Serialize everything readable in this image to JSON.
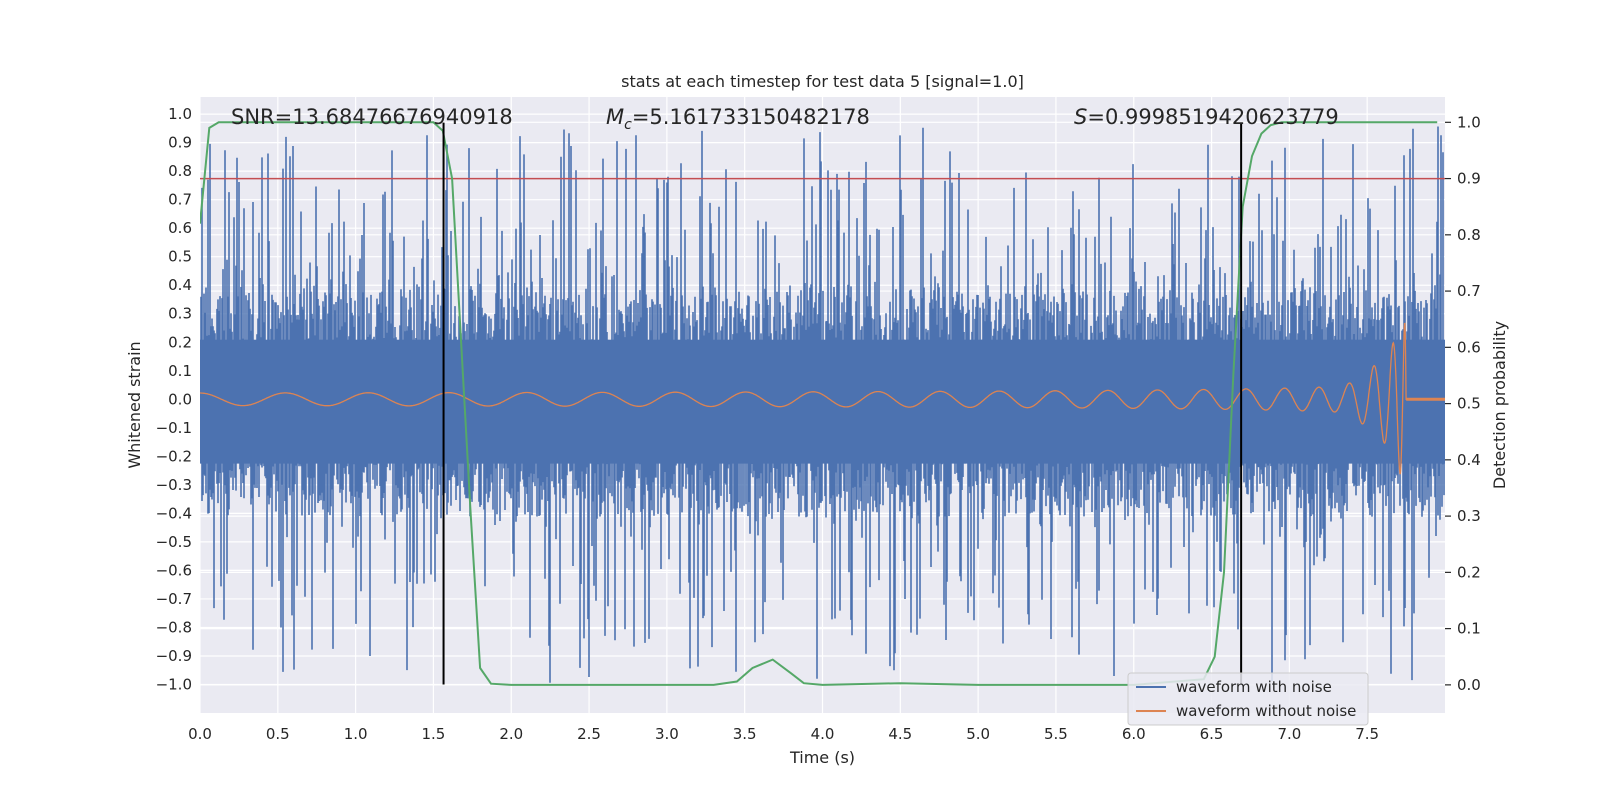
{
  "chart_data": {
    "type": "line",
    "title": "stats at each timestep for test data 5 [signal=1.0]",
    "xlabel": "Time (s)",
    "ylabel_left": "Whitened strain",
    "ylabel_right": "Detection probability",
    "xlim": [
      0.0,
      8.0
    ],
    "ylim_left": [
      -1.1,
      1.06
    ],
    "ylim_right": [
      -0.05,
      1.045
    ],
    "x_ticks": [
      0.0,
      0.5,
      1.0,
      1.5,
      2.0,
      2.5,
      3.0,
      3.5,
      4.0,
      4.5,
      5.0,
      5.5,
      6.0,
      6.5,
      7.0,
      7.5
    ],
    "x_tick_labels": [
      "0.0",
      "0.5",
      "1.0",
      "1.5",
      "2.0",
      "2.5",
      "3.0",
      "3.5",
      "4.0",
      "4.5",
      "5.0",
      "5.5",
      "6.0",
      "6.5",
      "7.0",
      "7.5"
    ],
    "y_left_ticks": [
      1.0,
      0.9,
      0.8,
      0.7,
      0.6,
      0.5,
      0.4,
      0.3,
      0.2,
      0.1,
      0.0,
      -0.1,
      -0.2,
      -0.3,
      -0.4,
      -0.5,
      -0.6,
      -0.7,
      -0.8,
      -0.9,
      -1.0
    ],
    "y_left_tick_labels": [
      "1.0",
      "0.9",
      "0.8",
      "0.7",
      "0.6",
      "0.5",
      "0.4",
      "0.3",
      "0.2",
      "0.1",
      "0.0",
      "−0.1",
      "−0.2",
      "−0.3",
      "−0.4",
      "−0.5",
      "−0.6",
      "−0.7",
      "−0.8",
      "−0.9",
      "−1.0"
    ],
    "y_right_ticks": [
      1.0,
      0.9,
      0.8,
      0.7,
      0.6,
      0.5,
      0.4,
      0.3,
      0.2,
      0.1,
      0.0
    ],
    "y_right_tick_labels": [
      "1.0",
      "0.9",
      "0.8",
      "0.7",
      "0.6",
      "0.5",
      "0.4",
      "0.3",
      "0.2",
      "0.1",
      "0.0"
    ],
    "annotations": {
      "snr": "SNR=13.68476676940918",
      "mc_symbol": "M",
      "mc_sub": "c",
      "mc_value": "=5.161733150482178",
      "s_symbol": "S",
      "s_value": "=0.9998519420623779"
    },
    "threshold": {
      "axis": "right",
      "value": 0.9,
      "color": "#c44e52"
    },
    "vertical_lines": [
      {
        "x": 1.565,
        "ymin": -1.0,
        "ymax": 0.97,
        "color": "#000000"
      },
      {
        "x": 6.69,
        "ymin": -1.0,
        "ymax": 0.97,
        "color": "#000000"
      }
    ],
    "series": [
      {
        "name": "waveform with noise",
        "axis": "left",
        "color": "#4c72b0",
        "kind": "noise",
        "x_range": [
          0.0,
          8.0
        ],
        "core_range": [
          -0.41,
          0.38
        ],
        "peak_range": [
          -1.0,
          0.96
        ]
      },
      {
        "name": "waveform without noise",
        "axis": "left",
        "color": "#dd8452",
        "kind": "chirp",
        "x_range": [
          0.0,
          8.0
        ],
        "merger_time": 7.75,
        "amplitude_start": 0.022,
        "amplitude_peak": 0.27
      },
      {
        "name": "detection probability",
        "axis": "right",
        "color": "#55a868",
        "x": [
          0.0,
          0.06,
          0.12,
          0.5,
          1.0,
          1.5,
          1.56,
          1.62,
          1.68,
          1.74,
          1.8,
          1.87,
          2.0,
          3.0,
          3.3,
          3.45,
          3.55,
          3.68,
          3.8,
          3.88,
          4.0,
          4.5,
          5.0,
          5.5,
          6.0,
          6.45,
          6.52,
          6.58,
          6.64,
          6.7,
          6.76,
          6.82,
          6.88,
          6.95,
          7.1,
          7.5,
          7.95
        ],
        "y": [
          0.82,
          0.99,
          1.0,
          1.0,
          1.0,
          1.0,
          0.985,
          0.9,
          0.6,
          0.3,
          0.03,
          0.002,
          0.0,
          0.0,
          0.0,
          0.006,
          0.03,
          0.045,
          0.02,
          0.003,
          0.0,
          0.003,
          0.0,
          0.0,
          0.0,
          0.01,
          0.05,
          0.2,
          0.55,
          0.85,
          0.94,
          0.98,
          0.995,
          1.0,
          1.0,
          1.0,
          1.0
        ]
      }
    ],
    "legend": {
      "position": "lower-right",
      "entries": [
        {
          "label": "waveform with noise",
          "color": "#4c72b0"
        },
        {
          "label": "waveform without noise",
          "color": "#dd8452"
        }
      ]
    },
    "background_color": "#eaeaf2",
    "grid": true
  }
}
